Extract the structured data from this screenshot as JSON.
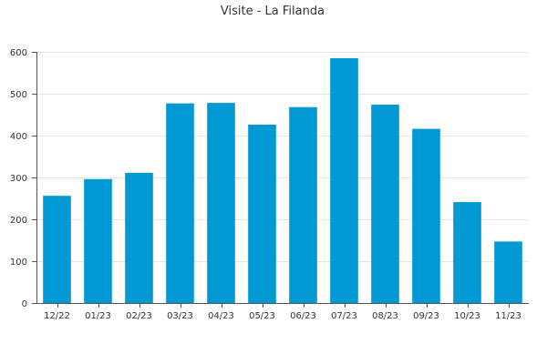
{
  "chart_data": {
    "type": "bar",
    "title": "Visite - La Filanda",
    "xlabel": "",
    "ylabel": "",
    "categories": [
      "12/22",
      "01/23",
      "02/23",
      "03/23",
      "04/23",
      "05/23",
      "06/23",
      "07/23",
      "08/23",
      "09/23",
      "10/23",
      "11/23"
    ],
    "values": [
      256,
      296,
      311,
      477,
      478,
      426,
      468,
      585,
      474,
      416,
      241,
      147
    ],
    "ylim": [
      0,
      600
    ],
    "yticks": [
      0,
      100,
      200,
      300,
      400,
      500,
      600
    ],
    "grid": true,
    "legend": "none",
    "colors": {
      "bar": "#0099d4",
      "grid": "#e6e6e6",
      "axis": "#555555",
      "text": "#333333"
    }
  }
}
